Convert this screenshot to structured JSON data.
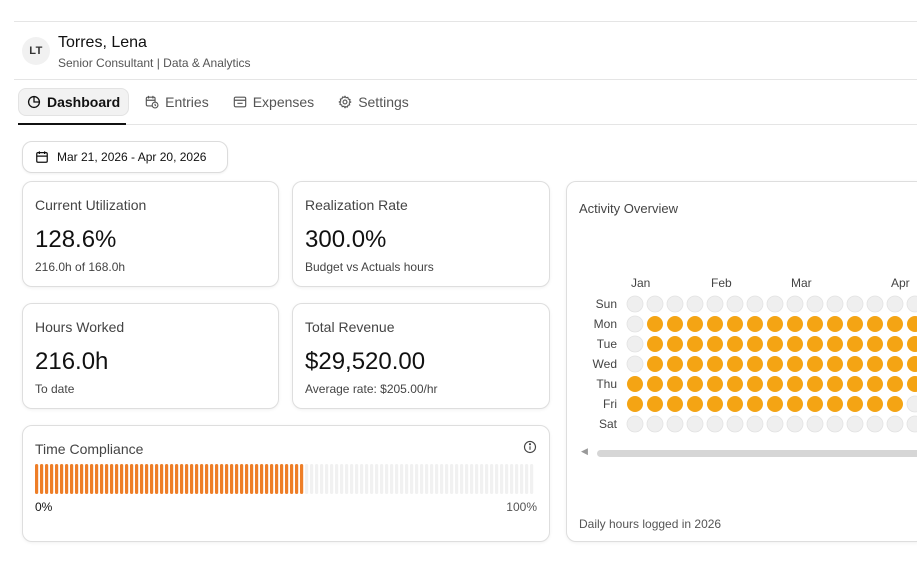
{
  "user": {
    "initials": "LT",
    "name": "Torres, Lena",
    "title": "Senior Consultant | Data & Analytics"
  },
  "tabs": [
    {
      "label": "Dashboard",
      "icon": "pie-chart-icon",
      "active": true
    },
    {
      "label": "Entries",
      "icon": "calendar-clock-icon",
      "active": false
    },
    {
      "label": "Expenses",
      "icon": "receipt-icon",
      "active": false
    },
    {
      "label": "Settings",
      "icon": "gear-icon",
      "active": false
    }
  ],
  "date_range": {
    "label": "Mar 21, 2026 - Apr 20, 2026",
    "icon": "calendar-icon"
  },
  "cards": {
    "utilization": {
      "title": "Current Utilization",
      "value": "128.6%",
      "sub": "216.0h of 168.0h"
    },
    "realization": {
      "title": "Realization Rate",
      "value": "300.0%",
      "sub": "Budget vs Actuals hours"
    },
    "hours": {
      "title": "Hours Worked",
      "value": "216.0h",
      "sub": "To date"
    },
    "revenue": {
      "title": "Total Revenue",
      "value": "$29,520.00",
      "sub": "Average rate: $205.00/hr"
    }
  },
  "compliance": {
    "title": "Time Compliance",
    "min_label": "0%",
    "max_label": "100%",
    "fill_fraction": 0.54,
    "fill_color": "#ee7e27",
    "empty_color": "#f1f1f1"
  },
  "activity": {
    "title": "Activity Overview",
    "footer": "Daily hours logged in 2026",
    "months": [
      "Jan",
      "Feb",
      "Mar",
      "Apr"
    ],
    "days": [
      "Sun",
      "Mon",
      "Tue",
      "Wed",
      "Thu",
      "Fri",
      "Sat"
    ],
    "active_color": "#f4a414",
    "empty_color": "#efefef",
    "weeks": 15,
    "grid": [
      [
        0,
        0,
        0,
        0,
        0,
        0,
        0,
        0,
        0,
        0,
        0,
        0,
        0,
        0,
        0
      ],
      [
        0,
        1,
        1,
        1,
        1,
        1,
        1,
        1,
        1,
        1,
        1,
        1,
        1,
        1,
        1
      ],
      [
        0,
        1,
        1,
        1,
        1,
        1,
        1,
        1,
        1,
        1,
        1,
        1,
        1,
        1,
        1
      ],
      [
        0,
        1,
        1,
        1,
        1,
        1,
        1,
        1,
        1,
        1,
        1,
        1,
        1,
        1,
        1
      ],
      [
        1,
        1,
        1,
        1,
        1,
        1,
        1,
        1,
        1,
        1,
        1,
        1,
        1,
        1,
        1
      ],
      [
        1,
        1,
        1,
        1,
        1,
        1,
        1,
        1,
        1,
        1,
        1,
        1,
        1,
        1,
        0
      ],
      [
        0,
        0,
        0,
        0,
        0,
        0,
        0,
        0,
        0,
        0,
        0,
        0,
        0,
        0,
        0
      ]
    ]
  }
}
